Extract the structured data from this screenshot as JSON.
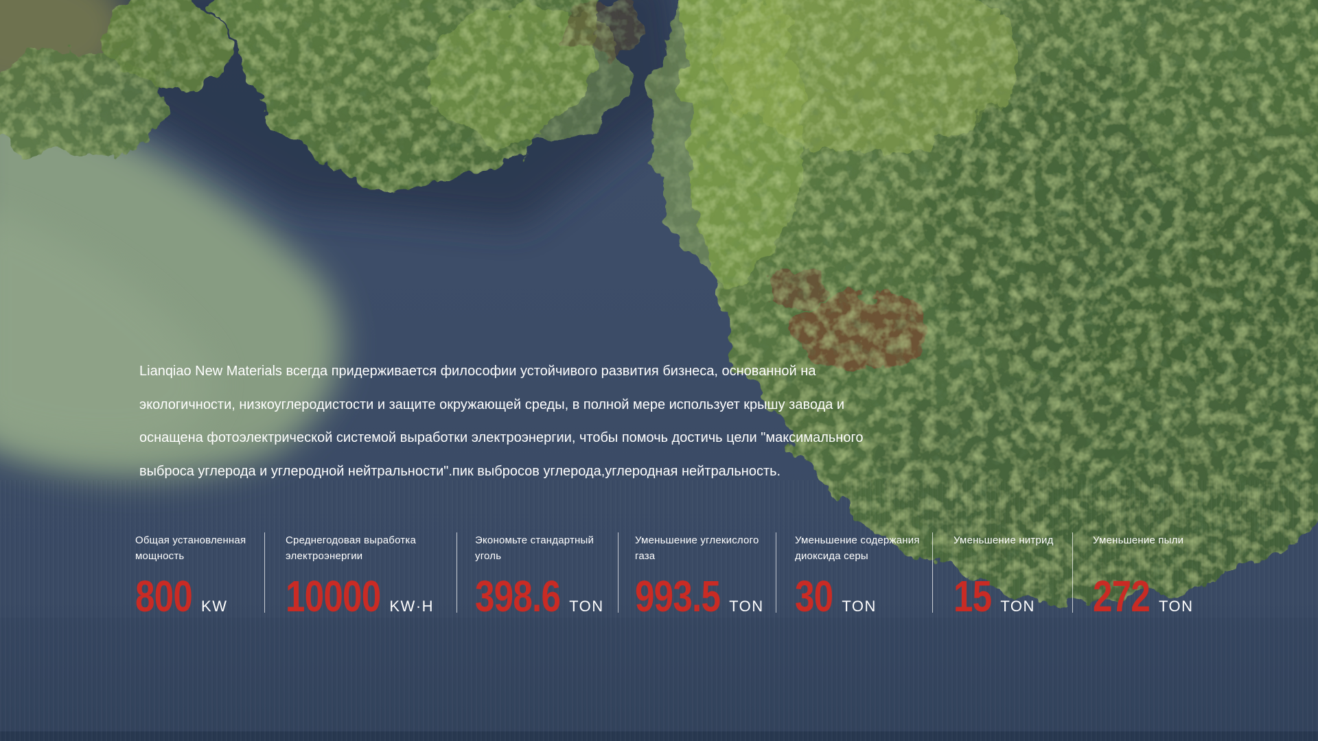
{
  "hero": {
    "paragraph_lines": [
      "Lianqiao New Materials всегда придерживается философии устойчивого развития бизнеса, основанной на",
      "экологичности, низкоуглеродистости и защите окружающей среды, в полной мере использует крышу завода и",
      "оснащена фотоэлектрической системой выработки электроэнергии, чтобы помочь достичь цели \"максимального",
      "выброса углерода и углеродной нейтральности\".пик выбросов углерода,углеродная нейтральность."
    ]
  },
  "stats": {
    "items": [
      {
        "label": "Общая установленная мощность",
        "value": "800",
        "unit": "KW"
      },
      {
        "label": "Среднегодовая выработка электроэнергии",
        "value": "10000",
        "unit": "KW·H"
      },
      {
        "label": "Экономьте стандартный уголь",
        "value": "398.6",
        "unit": "TON"
      },
      {
        "label": "Уменьшение углекислого газа",
        "value": "993.5",
        "unit": "TON"
      },
      {
        "label": "Уменьшение содержания диоксида серы",
        "value": "30",
        "unit": "TON"
      },
      {
        "label": "Уменьшение нитрид",
        "value": "15",
        "unit": "TON"
      },
      {
        "label": "Уменьшение пыли",
        "value": "272",
        "unit": "TON"
      }
    ]
  },
  "colors": {
    "accent_red": "#c92b24",
    "text_white": "#ffffff",
    "divider": "rgba(255,255,255,0.72)",
    "water_dark": "#3a4a64",
    "forest_green": "#527041"
  }
}
